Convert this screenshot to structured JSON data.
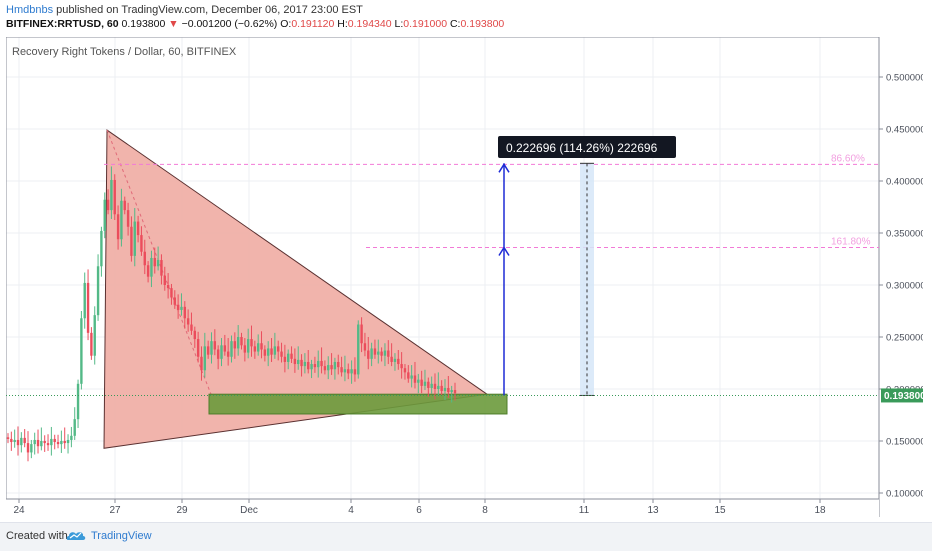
{
  "header": {
    "author": "Hmdbnbs",
    "published_text": "published on TradingView.com, December 06, 2017 23:00 EST",
    "symbol": "BITFINEX:RRTUSD, 60",
    "last": "0.193800",
    "change_arrow": "▼",
    "change": "−0.001200 (−0.62%)",
    "o_label": "O:",
    "o_value": "0.191120",
    "h_label": "H:",
    "h_value": "0.194340",
    "l_label": "L:",
    "l_value": "0.191000",
    "c_label": "C:",
    "c_value": "0.193800"
  },
  "footer": {
    "created_with": "Created with",
    "brand": "TradingView",
    "logo_icon": "tradingview-cloud-icon"
  },
  "colors": {
    "triangle_fill": "#f0b0a8",
    "range_fill": "#6b9a3c",
    "up_candle": "#53b987",
    "down_candle": "#eb4d5c",
    "measure_arrow": "#1f2bd6",
    "fib_line": "#f27ad7",
    "price_label_bg": "#3a9a5a"
  },
  "chart_data": {
    "type": "candlestick",
    "title": "Recovery Right Tokens / Dollar, 60, BITFINEX",
    "x_tick_labels": [
      "24",
      "27",
      "29",
      "Dec",
      "4",
      "6",
      "8",
      "11",
      "13",
      "15",
      "18"
    ],
    "y_tick_labels": [
      "0.500000",
      "0.450000",
      "0.400000",
      "0.350000",
      "0.300000",
      "0.250000",
      "0.200000",
      "0.150000",
      "0.100000"
    ],
    "ylim": [
      0.095,
      0.535
    ],
    "grid": true,
    "current_price": 0.1938,
    "current_price_label": "0.193800",
    "measure_label": "0.222696 (114.26%) 222696",
    "fib_levels": [
      {
        "label": "86.60%",
        "value": 0.416
      },
      {
        "label": "161.80%",
        "value": 0.336
      }
    ],
    "triangle": {
      "apex_high": 0.449,
      "base_low": 0.143,
      "right_tip": 0.195
    },
    "price_series": [
      0.152,
      0.149,
      0.151,
      0.146,
      0.153,
      0.148,
      0.139,
      0.147,
      0.151,
      0.145,
      0.15,
      0.148,
      0.146,
      0.152,
      0.149,
      0.147,
      0.15,
      0.148,
      0.151,
      0.155,
      0.171,
      0.205,
      0.268,
      0.302,
      0.254,
      0.232,
      0.271,
      0.318,
      0.352,
      0.382,
      0.372,
      0.401,
      0.368,
      0.344,
      0.381,
      0.372,
      0.356,
      0.328,
      0.361,
      0.348,
      0.332,
      0.319,
      0.308,
      0.326,
      0.318,
      0.324,
      0.309,
      0.3,
      0.297,
      0.288,
      0.281,
      0.276,
      0.279,
      0.268,
      0.262,
      0.256,
      0.248,
      0.231,
      0.218,
      0.241,
      0.233,
      0.246,
      0.238,
      0.229,
      0.242,
      0.236,
      0.231,
      0.246,
      0.239,
      0.25,
      0.242,
      0.235,
      0.248,
      0.241,
      0.236,
      0.244,
      0.238,
      0.232,
      0.239,
      0.233,
      0.241,
      0.236,
      0.231,
      0.226,
      0.234,
      0.229,
      0.224,
      0.228,
      0.222,
      0.226,
      0.219,
      0.224,
      0.221,
      0.227,
      0.222,
      0.218,
      0.223,
      0.219,
      0.226,
      0.221,
      0.216,
      0.219,
      0.215,
      0.219,
      0.214,
      0.262,
      0.244,
      0.237,
      0.229,
      0.239,
      0.233,
      0.236,
      0.232,
      0.237,
      0.231,
      0.226,
      0.229,
      0.224,
      0.22,
      0.216,
      0.21,
      0.213,
      0.206,
      0.209,
      0.203,
      0.207,
      0.201,
      0.205,
      0.2,
      0.203,
      0.198,
      0.201,
      0.197,
      0.199,
      0.196
    ]
  }
}
